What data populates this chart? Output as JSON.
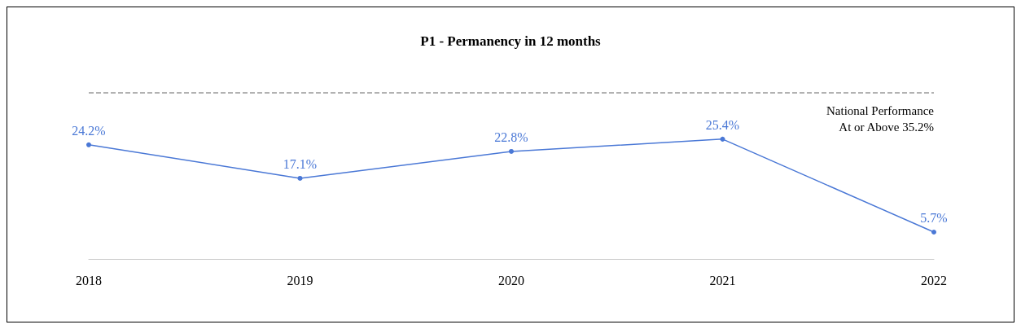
{
  "chart_data": {
    "type": "line",
    "title": "P1 - Permanency in 12 months",
    "categories": [
      "2018",
      "2019",
      "2020",
      "2021",
      "2022"
    ],
    "series": [
      {
        "color": "#4a78d6",
        "values": [
          24.2,
          17.1,
          22.8,
          25.4,
          5.7
        ],
        "value_labels": [
          "24.2%",
          "17.1%",
          "22.8%",
          "25.4%",
          "5.7%"
        ]
      }
    ],
    "tick_labels": "x",
    "grid": false,
    "marker": "circle",
    "line_style": "solid",
    "ref_lines": [
      {
        "axis": "y",
        "value": 35.2,
        "label": "National Performance\nAt or Above 35.2%",
        "color": "#999999",
        "line_style": "dashed"
      }
    ]
  }
}
